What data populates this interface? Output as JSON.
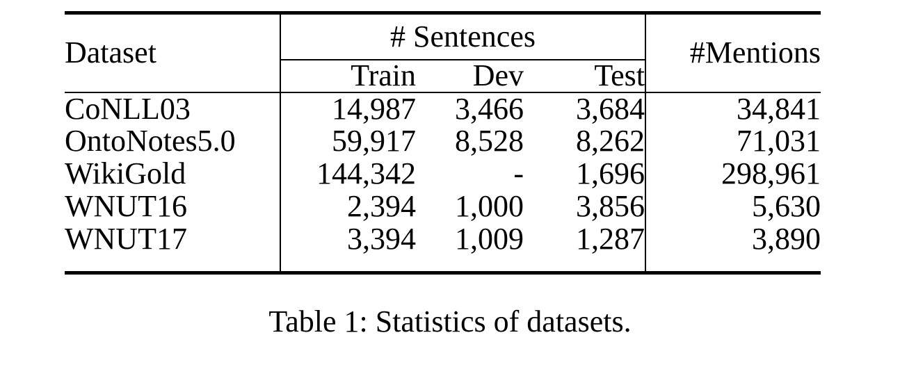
{
  "page": {
    "background": "#ffffff"
  },
  "colors": {
    "text": "#000000",
    "rule": "#000000",
    "background": "#ffffff"
  },
  "table": {
    "caption": "Table 1: Statistics of datasets.",
    "headers": {
      "dataset": "Dataset",
      "sentences_group": "# Sentences",
      "train": "Train",
      "dev": "Dev",
      "test": "Test",
      "mentions": "#Mentions"
    },
    "rows": [
      {
        "dataset": "CoNLL03",
        "train": "14,987",
        "dev": "3,466",
        "test": "3,684",
        "mentions": "34,841"
      },
      {
        "dataset": "OntoNotes5.0",
        "train": "59,917",
        "dev": "8,528",
        "test": "8,262",
        "mentions": "71,031"
      },
      {
        "dataset": "WikiGold",
        "train": "144,342",
        "dev": "-",
        "test": "1,696",
        "mentions": "298,961"
      },
      {
        "dataset": "WNUT16",
        "train": "2,394",
        "dev": "1,000",
        "test": "3,856",
        "mentions": "5,630"
      },
      {
        "dataset": "WNUT17",
        "train": "3,394",
        "dev": "1,009",
        "test": "1,287",
        "mentions": "3,890"
      }
    ]
  }
}
